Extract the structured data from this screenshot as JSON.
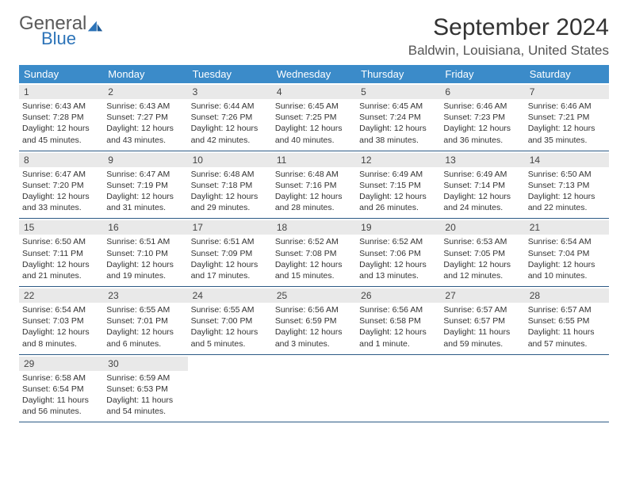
{
  "logo": {
    "word1": "General",
    "word2": "Blue"
  },
  "title": "September 2024",
  "location": "Baldwin, Louisiana, United States",
  "accent_color": "#3b8bc9",
  "rule_color": "#2c5a85",
  "band_color": "#e9e9e9",
  "daynames": [
    "Sunday",
    "Monday",
    "Tuesday",
    "Wednesday",
    "Thursday",
    "Friday",
    "Saturday"
  ],
  "weeks": [
    [
      {
        "n": "1",
        "sr": "Sunrise: 6:43 AM",
        "ss": "Sunset: 7:28 PM",
        "d1": "Daylight: 12 hours",
        "d2": "and 45 minutes."
      },
      {
        "n": "2",
        "sr": "Sunrise: 6:43 AM",
        "ss": "Sunset: 7:27 PM",
        "d1": "Daylight: 12 hours",
        "d2": "and 43 minutes."
      },
      {
        "n": "3",
        "sr": "Sunrise: 6:44 AM",
        "ss": "Sunset: 7:26 PM",
        "d1": "Daylight: 12 hours",
        "d2": "and 42 minutes."
      },
      {
        "n": "4",
        "sr": "Sunrise: 6:45 AM",
        "ss": "Sunset: 7:25 PM",
        "d1": "Daylight: 12 hours",
        "d2": "and 40 minutes."
      },
      {
        "n": "5",
        "sr": "Sunrise: 6:45 AM",
        "ss": "Sunset: 7:24 PM",
        "d1": "Daylight: 12 hours",
        "d2": "and 38 minutes."
      },
      {
        "n": "6",
        "sr": "Sunrise: 6:46 AM",
        "ss": "Sunset: 7:23 PM",
        "d1": "Daylight: 12 hours",
        "d2": "and 36 minutes."
      },
      {
        "n": "7",
        "sr": "Sunrise: 6:46 AM",
        "ss": "Sunset: 7:21 PM",
        "d1": "Daylight: 12 hours",
        "d2": "and 35 minutes."
      }
    ],
    [
      {
        "n": "8",
        "sr": "Sunrise: 6:47 AM",
        "ss": "Sunset: 7:20 PM",
        "d1": "Daylight: 12 hours",
        "d2": "and 33 minutes."
      },
      {
        "n": "9",
        "sr": "Sunrise: 6:47 AM",
        "ss": "Sunset: 7:19 PM",
        "d1": "Daylight: 12 hours",
        "d2": "and 31 minutes."
      },
      {
        "n": "10",
        "sr": "Sunrise: 6:48 AM",
        "ss": "Sunset: 7:18 PM",
        "d1": "Daylight: 12 hours",
        "d2": "and 29 minutes."
      },
      {
        "n": "11",
        "sr": "Sunrise: 6:48 AM",
        "ss": "Sunset: 7:16 PM",
        "d1": "Daylight: 12 hours",
        "d2": "and 28 minutes."
      },
      {
        "n": "12",
        "sr": "Sunrise: 6:49 AM",
        "ss": "Sunset: 7:15 PM",
        "d1": "Daylight: 12 hours",
        "d2": "and 26 minutes."
      },
      {
        "n": "13",
        "sr": "Sunrise: 6:49 AM",
        "ss": "Sunset: 7:14 PM",
        "d1": "Daylight: 12 hours",
        "d2": "and 24 minutes."
      },
      {
        "n": "14",
        "sr": "Sunrise: 6:50 AM",
        "ss": "Sunset: 7:13 PM",
        "d1": "Daylight: 12 hours",
        "d2": "and 22 minutes."
      }
    ],
    [
      {
        "n": "15",
        "sr": "Sunrise: 6:50 AM",
        "ss": "Sunset: 7:11 PM",
        "d1": "Daylight: 12 hours",
        "d2": "and 21 minutes."
      },
      {
        "n": "16",
        "sr": "Sunrise: 6:51 AM",
        "ss": "Sunset: 7:10 PM",
        "d1": "Daylight: 12 hours",
        "d2": "and 19 minutes."
      },
      {
        "n": "17",
        "sr": "Sunrise: 6:51 AM",
        "ss": "Sunset: 7:09 PM",
        "d1": "Daylight: 12 hours",
        "d2": "and 17 minutes."
      },
      {
        "n": "18",
        "sr": "Sunrise: 6:52 AM",
        "ss": "Sunset: 7:08 PM",
        "d1": "Daylight: 12 hours",
        "d2": "and 15 minutes."
      },
      {
        "n": "19",
        "sr": "Sunrise: 6:52 AM",
        "ss": "Sunset: 7:06 PM",
        "d1": "Daylight: 12 hours",
        "d2": "and 13 minutes."
      },
      {
        "n": "20",
        "sr": "Sunrise: 6:53 AM",
        "ss": "Sunset: 7:05 PM",
        "d1": "Daylight: 12 hours",
        "d2": "and 12 minutes."
      },
      {
        "n": "21",
        "sr": "Sunrise: 6:54 AM",
        "ss": "Sunset: 7:04 PM",
        "d1": "Daylight: 12 hours",
        "d2": "and 10 minutes."
      }
    ],
    [
      {
        "n": "22",
        "sr": "Sunrise: 6:54 AM",
        "ss": "Sunset: 7:03 PM",
        "d1": "Daylight: 12 hours",
        "d2": "and 8 minutes."
      },
      {
        "n": "23",
        "sr": "Sunrise: 6:55 AM",
        "ss": "Sunset: 7:01 PM",
        "d1": "Daylight: 12 hours",
        "d2": "and 6 minutes."
      },
      {
        "n": "24",
        "sr": "Sunrise: 6:55 AM",
        "ss": "Sunset: 7:00 PM",
        "d1": "Daylight: 12 hours",
        "d2": "and 5 minutes."
      },
      {
        "n": "25",
        "sr": "Sunrise: 6:56 AM",
        "ss": "Sunset: 6:59 PM",
        "d1": "Daylight: 12 hours",
        "d2": "and 3 minutes."
      },
      {
        "n": "26",
        "sr": "Sunrise: 6:56 AM",
        "ss": "Sunset: 6:58 PM",
        "d1": "Daylight: 12 hours",
        "d2": "and 1 minute."
      },
      {
        "n": "27",
        "sr": "Sunrise: 6:57 AM",
        "ss": "Sunset: 6:57 PM",
        "d1": "Daylight: 11 hours",
        "d2": "and 59 minutes."
      },
      {
        "n": "28",
        "sr": "Sunrise: 6:57 AM",
        "ss": "Sunset: 6:55 PM",
        "d1": "Daylight: 11 hours",
        "d2": "and 57 minutes."
      }
    ],
    [
      {
        "n": "29",
        "sr": "Sunrise: 6:58 AM",
        "ss": "Sunset: 6:54 PM",
        "d1": "Daylight: 11 hours",
        "d2": "and 56 minutes."
      },
      {
        "n": "30",
        "sr": "Sunrise: 6:59 AM",
        "ss": "Sunset: 6:53 PM",
        "d1": "Daylight: 11 hours",
        "d2": "and 54 minutes."
      },
      {
        "empty": true
      },
      {
        "empty": true
      },
      {
        "empty": true
      },
      {
        "empty": true
      },
      {
        "empty": true
      }
    ]
  ]
}
